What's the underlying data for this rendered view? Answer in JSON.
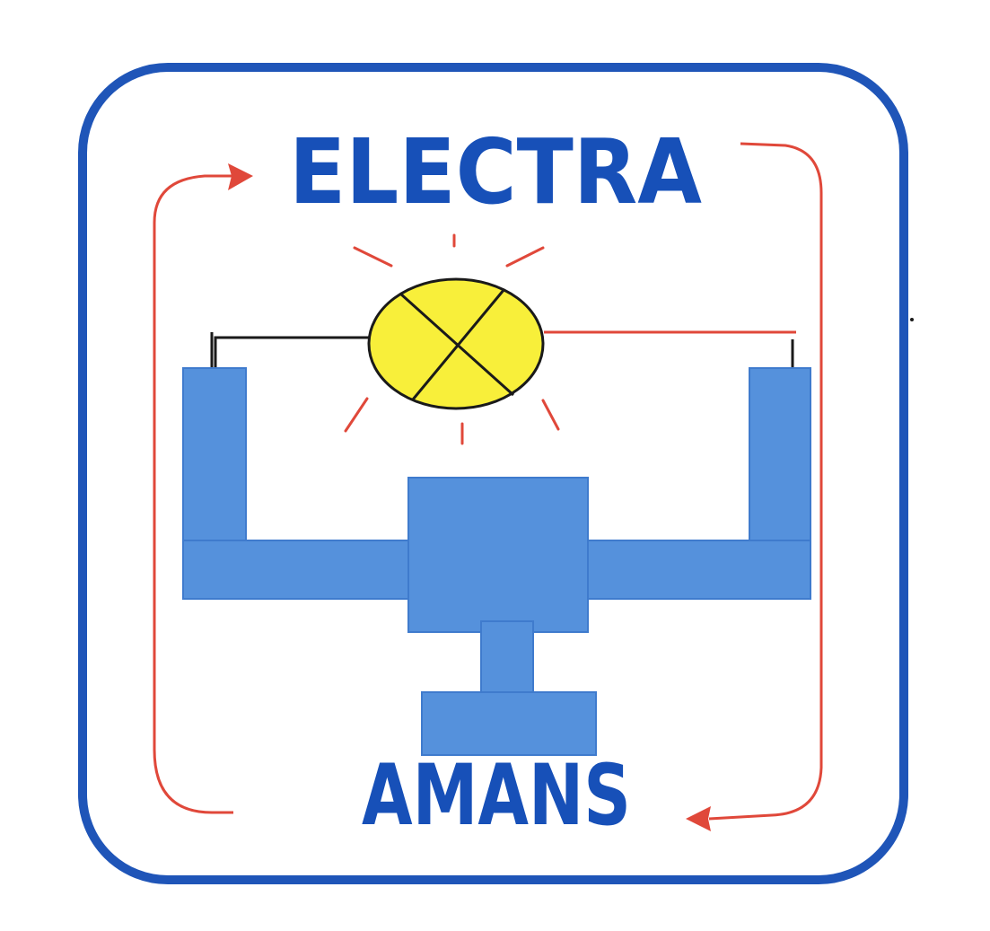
{
  "logo": {
    "top_word": "ELECTRA",
    "bottom_word": "AMANS"
  },
  "colors": {
    "frame_blue": "#1f55b8",
    "text_blue": "#1750b8",
    "block_blue": "#5591dc",
    "block_edge": "#3f7bcd",
    "lamp_yellow": "#f8ef3a",
    "wire_black": "#1a1a1a",
    "circuit_red": "#e0483a",
    "background": "#ffffff"
  },
  "icons": [
    "lamp-icon",
    "battery-symbol",
    "arrow-icon"
  ]
}
